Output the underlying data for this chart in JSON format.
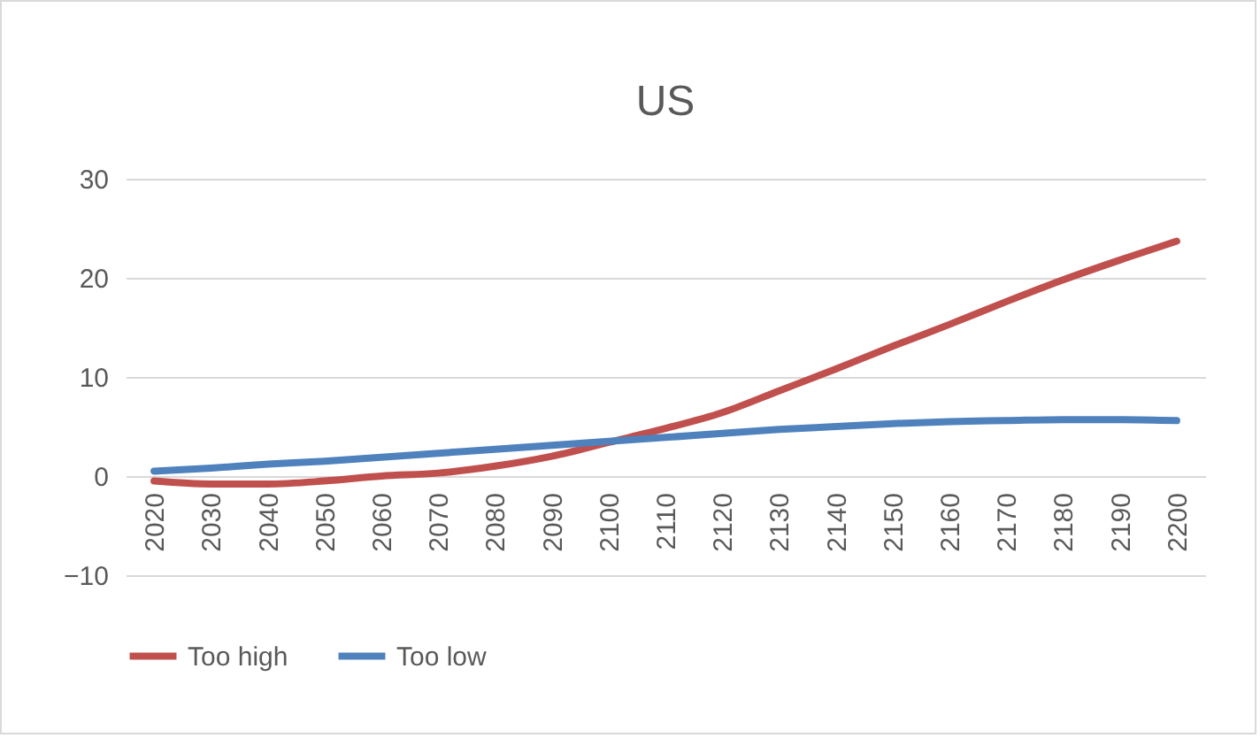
{
  "chart_data": {
    "type": "line",
    "title": "US",
    "categories": [
      "2020",
      "2030",
      "2040",
      "2050",
      "2060",
      "2070",
      "2080",
      "2090",
      "2100",
      "2110",
      "2120",
      "2130",
      "2140",
      "2150",
      "2160",
      "2170",
      "2180",
      "2190",
      "2200"
    ],
    "series": [
      {
        "name": "Too high",
        "color": "#c0504d",
        "values": [
          -0.5,
          -0.8,
          -0.8,
          -0.5,
          0,
          0.3,
          1.0,
          2.0,
          3.4,
          4.8,
          6.4,
          8.6,
          10.8,
          13.1,
          15.3,
          17.6,
          19.8,
          21.8,
          23.7
        ]
      },
      {
        "name": "Too low",
        "color": "#4f81bd",
        "values": [
          0.5,
          0.8,
          1.2,
          1.5,
          1.9,
          2.3,
          2.7,
          3.1,
          3.5,
          3.9,
          4.3,
          4.7,
          5.0,
          5.3,
          5.5,
          5.6,
          5.7,
          5.7,
          5.6
        ]
      }
    ],
    "ylim": [
      -10,
      30
    ],
    "yticks": [
      -10,
      0,
      10,
      20,
      30
    ],
    "grid": "y",
    "legend": "bottom",
    "marker": "none",
    "line_style": "solid"
  }
}
